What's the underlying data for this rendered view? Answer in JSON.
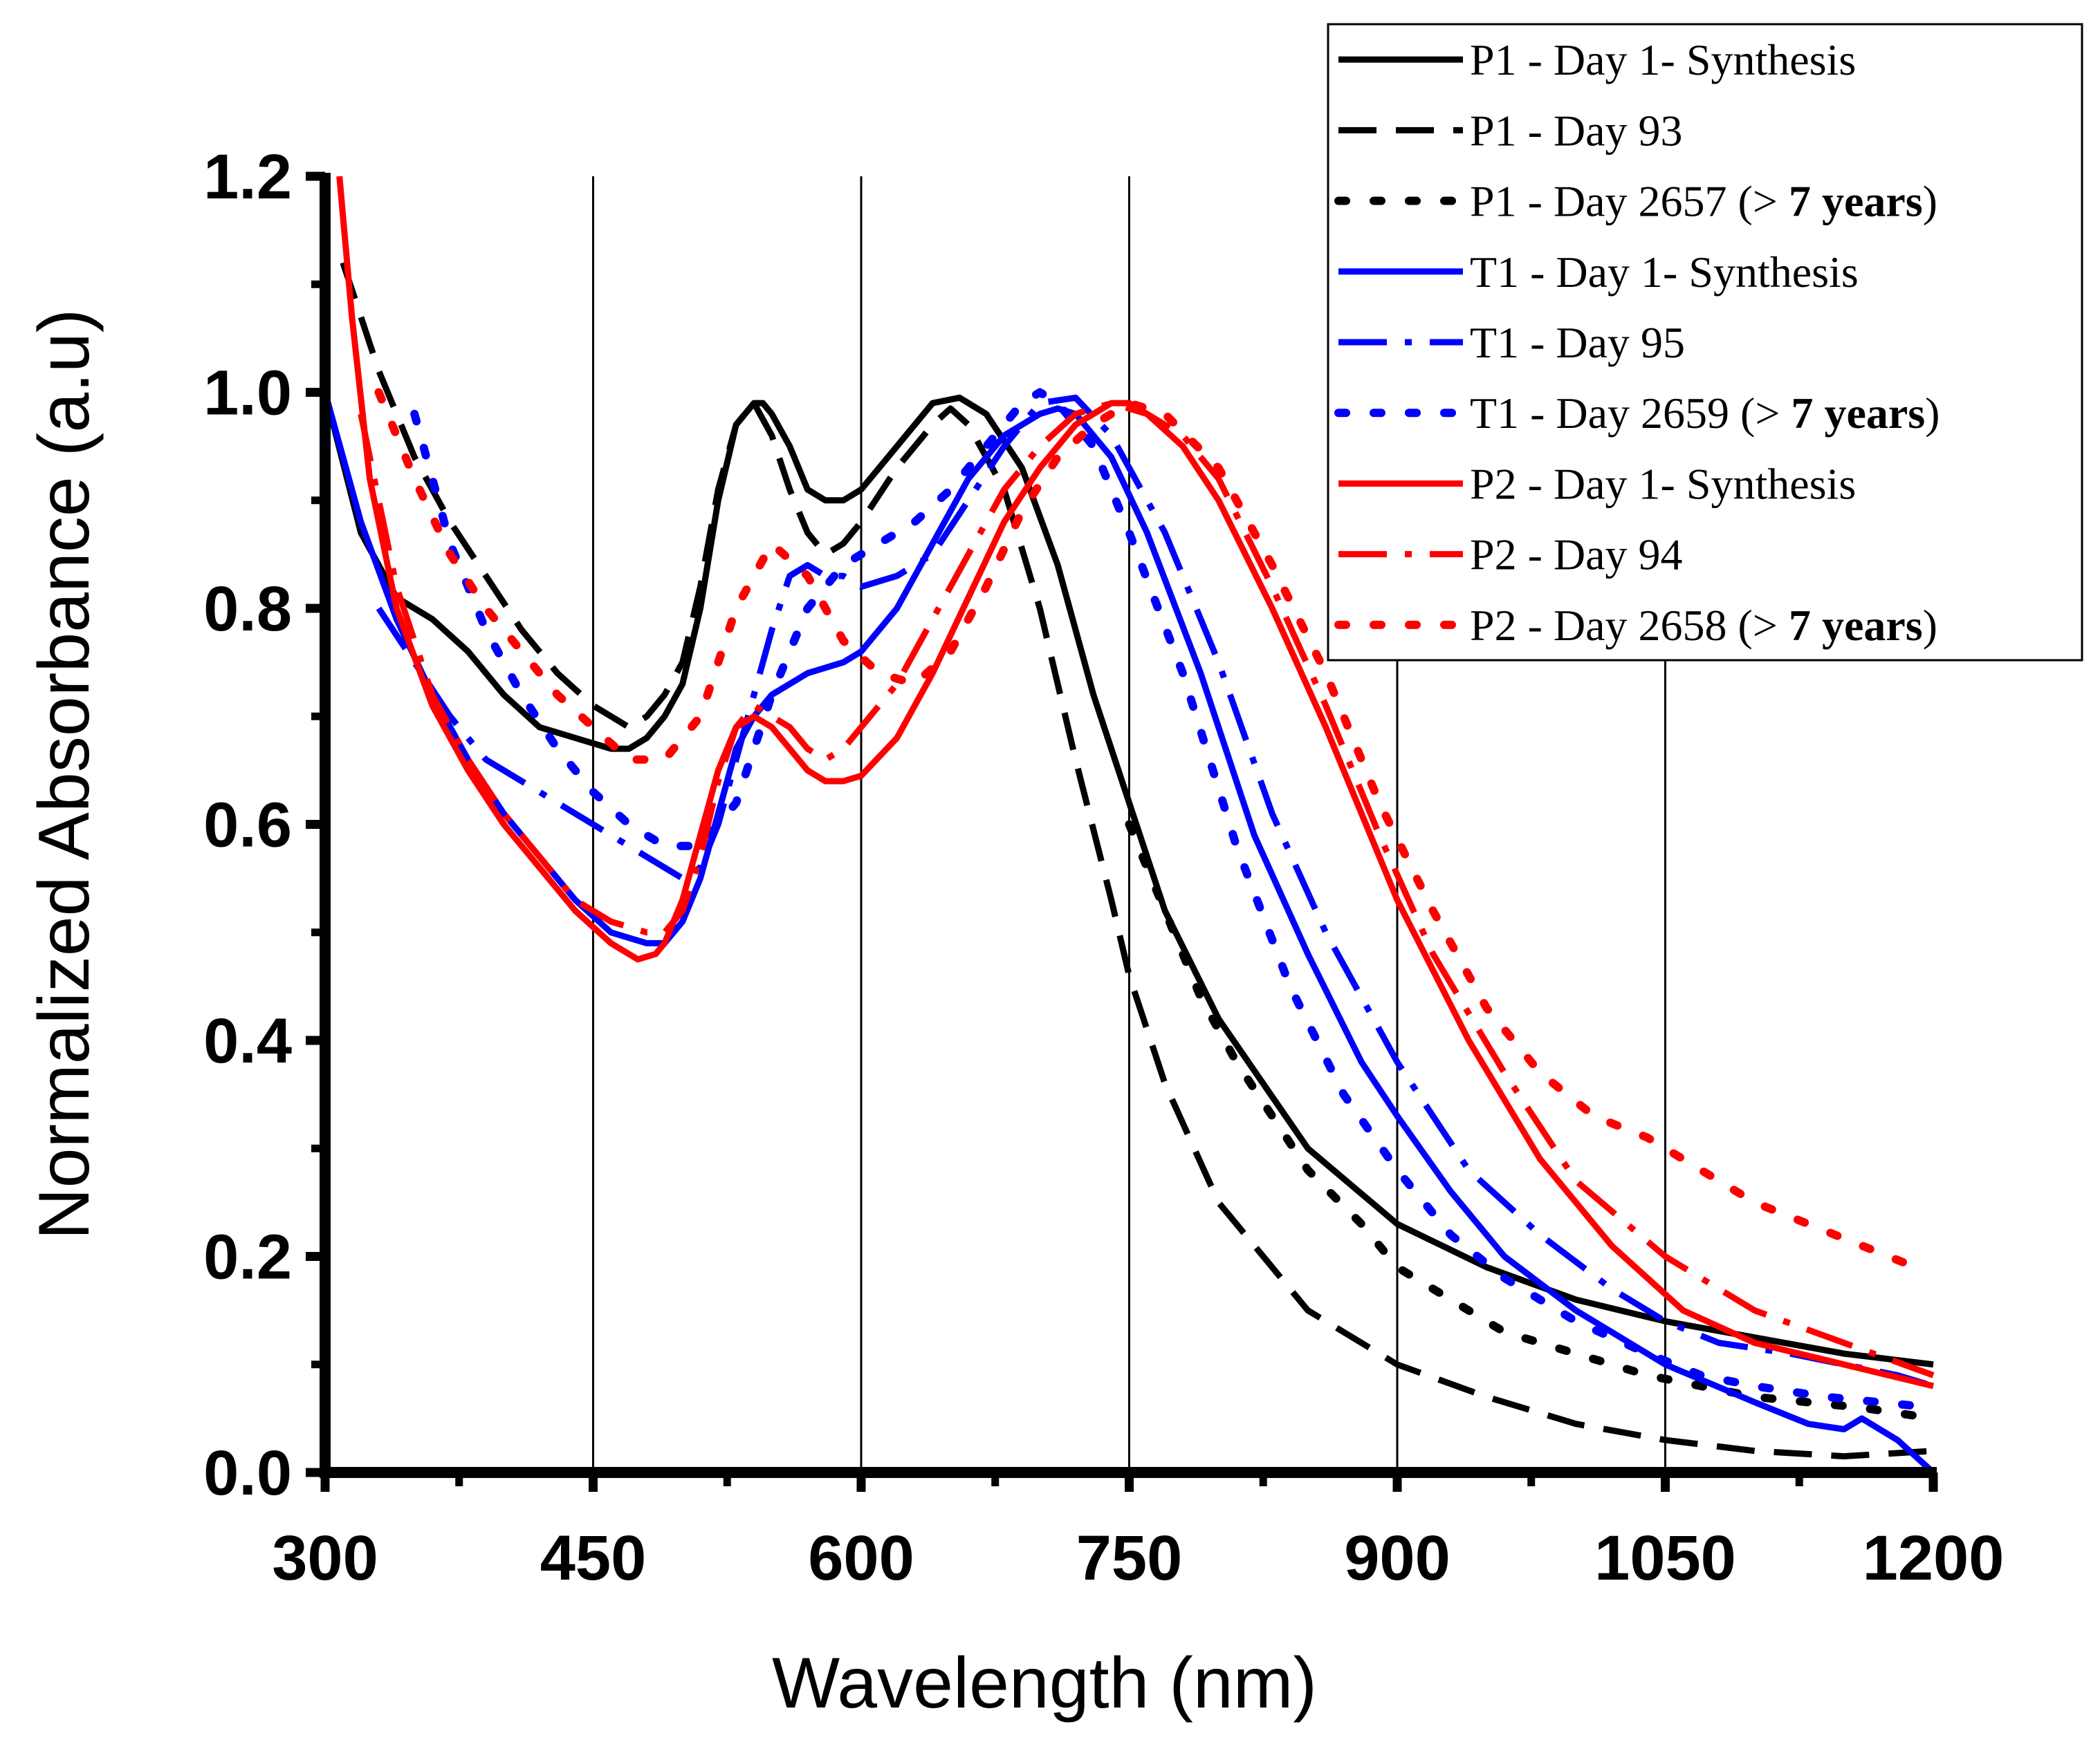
{
  "chart_data": {
    "type": "line",
    "title": "",
    "xlabel": "Wavelength (nm)",
    "ylabel": "Normalized Absorbance (a.u)",
    "xlim": [
      300,
      1200
    ],
    "ylim": [
      0,
      1.2
    ],
    "xticks": [
      300,
      450,
      600,
      750,
      900,
      1050,
      1200
    ],
    "xtick_labels": [
      "300",
      "450",
      "600",
      "750",
      "900",
      "1050",
      "1200"
    ],
    "yticks": [
      0,
      0.2,
      0.4,
      0.6,
      0.8,
      1.0,
      1.2
    ],
    "ytick_labels": [
      "0.0",
      "0.2",
      "0.4",
      "0.6",
      "0.8",
      "1.0",
      "1.2"
    ],
    "vertical_gridlines": [
      450,
      600,
      750,
      900,
      1050
    ],
    "legend_position": "top-right",
    "series": [
      {
        "name": "P1 - Day 1- Synthesis",
        "label_main": "P1 - Day 1- Synthesis",
        "label_bold": "",
        "color": "#000000",
        "style": "solid",
        "x": [
          300,
          320,
          340,
          360,
          380,
          400,
          420,
          440,
          460,
          470,
          480,
          490,
          500,
          510,
          520,
          530,
          540,
          545,
          550,
          560,
          570,
          580,
          590,
          600,
          620,
          640,
          655,
          670,
          690,
          710,
          730,
          750,
          770,
          800,
          850,
          900,
          950,
          1000,
          1050,
          1100,
          1150,
          1200
        ],
        "y": [
          1.0,
          0.87,
          0.81,
          0.79,
          0.76,
          0.72,
          0.69,
          0.68,
          0.67,
          0.67,
          0.68,
          0.7,
          0.73,
          0.8,
          0.9,
          0.97,
          0.99,
          0.99,
          0.98,
          0.95,
          0.91,
          0.9,
          0.9,
          0.91,
          0.95,
          0.99,
          0.995,
          0.98,
          0.93,
          0.84,
          0.72,
          0.62,
          0.52,
          0.42,
          0.3,
          0.23,
          0.19,
          0.16,
          0.14,
          0.125,
          0.11,
          0.1
        ]
      },
      {
        "name": "P1 - Day 93",
        "label_main": "P1 - Day 93",
        "label_bold": "",
        "color": "#000000",
        "style": "long-dash",
        "x": [
          310,
          330,
          350,
          370,
          390,
          410,
          430,
          450,
          470,
          480,
          490,
          500,
          510,
          520,
          530,
          540,
          550,
          560,
          570,
          580,
          590,
          600,
          620,
          640,
          650,
          660,
          680,
          700,
          720,
          740,
          750,
          770,
          800,
          850,
          900,
          950,
          1000,
          1050,
          1100,
          1150,
          1200
        ],
        "y": [
          1.12,
          1.02,
          0.94,
          0.88,
          0.83,
          0.78,
          0.74,
          0.71,
          0.69,
          0.7,
          0.72,
          0.75,
          0.82,
          0.91,
          0.97,
          0.99,
          0.96,
          0.91,
          0.87,
          0.85,
          0.86,
          0.88,
          0.93,
          0.97,
          0.985,
          0.97,
          0.91,
          0.8,
          0.66,
          0.53,
          0.46,
          0.36,
          0.25,
          0.15,
          0.1,
          0.07,
          0.045,
          0.03,
          0.02,
          0.015,
          0.02
        ]
      },
      {
        "name": "P1 - Day 2657  (> 7 years)",
        "label_main": "P1 - Day 2657  (> ",
        "label_bold": "7 years",
        "color": "#000000",
        "style": "dotted",
        "x": [
          750,
          770,
          790,
          810,
          830,
          850,
          880,
          900,
          930,
          960,
          1000,
          1040,
          1070,
          1100,
          1130,
          1160,
          1200
        ],
        "y": [
          0.6,
          0.52,
          0.44,
          0.38,
          0.33,
          0.28,
          0.23,
          0.19,
          0.16,
          0.13,
          0.11,
          0.09,
          0.08,
          0.07,
          0.065,
          0.06,
          0.05
        ]
      },
      {
        "name": "T1 - Day 1- Synthesis",
        "label_main": "T1 - Day 1- Synthesis",
        "label_bold": "",
        "color": "#0000ff",
        "style": "solid",
        "x": [
          300,
          320,
          340,
          360,
          380,
          400,
          420,
          440,
          460,
          480,
          490,
          500,
          510,
          520,
          530,
          540,
          550,
          560,
          570,
          580,
          590,
          600,
          620,
          640,
          660,
          680,
          700,
          710,
          720,
          740,
          760,
          790,
          820,
          850,
          880,
          900,
          930,
          960,
          1000,
          1050,
          1100,
          1130,
          1150,
          1160,
          1180,
          1200
        ],
        "y": [
          1.0,
          0.88,
          0.79,
          0.72,
          0.66,
          0.61,
          0.57,
          0.53,
          0.5,
          0.49,
          0.49,
          0.51,
          0.55,
          0.61,
          0.67,
          0.7,
          0.72,
          0.73,
          0.74,
          0.745,
          0.75,
          0.76,
          0.8,
          0.86,
          0.92,
          0.96,
          0.98,
          0.985,
          0.98,
          0.94,
          0.87,
          0.74,
          0.59,
          0.48,
          0.38,
          0.33,
          0.26,
          0.2,
          0.15,
          0.1,
          0.065,
          0.045,
          0.04,
          0.05,
          0.03,
          0.0
        ]
      },
      {
        "name": "T1 - Day 95",
        "label_main": "T1 - Day 95",
        "label_bold": "",
        "color": "#0000ff",
        "style": "dash-dot",
        "x": [
          330,
          350,
          370,
          390,
          400,
          410,
          430,
          450,
          470,
          490,
          500,
          510,
          520,
          530,
          540,
          550,
          560,
          570,
          580,
          590,
          600,
          620,
          640,
          660,
          680,
          700,
          720,
          740,
          770,
          800,
          830,
          860,
          900,
          940,
          980,
          1020,
          1050,
          1080,
          1120,
          1150,
          1180,
          1200
        ],
        "y": [
          0.8,
          0.75,
          0.7,
          0.66,
          0.65,
          0.64,
          0.62,
          0.6,
          0.58,
          0.56,
          0.55,
          0.56,
          0.6,
          0.66,
          0.72,
          0.78,
          0.83,
          0.84,
          0.83,
          0.83,
          0.82,
          0.83,
          0.85,
          0.9,
          0.95,
          0.99,
          0.995,
          0.96,
          0.87,
          0.75,
          0.61,
          0.5,
          0.38,
          0.28,
          0.22,
          0.17,
          0.14,
          0.12,
          0.11,
          0.1,
          0.09,
          0.08
        ]
      },
      {
        "name": "T1 - Day 2659 (> 7 years)",
        "label_main": "T1 - Day 2659 (> ",
        "label_bold": "7 years",
        "color": "#0000ff",
        "style": "dotted",
        "x": [
          350,
          370,
          390,
          410,
          430,
          450,
          470,
          490,
          510,
          530,
          550,
          570,
          590,
          610,
          630,
          650,
          670,
          690,
          700,
          710,
          730,
          750,
          780,
          810,
          840,
          870,
          900,
          930,
          960,
          1000,
          1040,
          1070,
          1100,
          1140,
          1170,
          1200
        ],
        "y": [
          0.98,
          0.86,
          0.78,
          0.72,
          0.67,
          0.63,
          0.6,
          0.58,
          0.58,
          0.62,
          0.72,
          0.8,
          0.84,
          0.86,
          0.88,
          0.91,
          0.95,
          0.99,
          1.0,
          0.99,
          0.95,
          0.87,
          0.74,
          0.58,
          0.45,
          0.35,
          0.28,
          0.22,
          0.18,
          0.14,
          0.11,
          0.09,
          0.08,
          0.07,
          0.065,
          0.06
        ]
      },
      {
        "name": "P2 - Day 1- Synthesis",
        "label_main": "P2 - Day 1- Synthesis",
        "label_bold": "",
        "color": "#ff0000",
        "style": "solid",
        "x": [
          308,
          315,
          325,
          340,
          360,
          380,
          400,
          420,
          440,
          460,
          475,
          485,
          490,
          500,
          510,
          520,
          530,
          540,
          550,
          560,
          570,
          580,
          590,
          600,
          620,
          640,
          660,
          680,
          700,
          720,
          740,
          750,
          760,
          780,
          800,
          830,
          860,
          900,
          940,
          980,
          1020,
          1060,
          1100,
          1150,
          1200
        ],
        "y": [
          1.2,
          1.07,
          0.92,
          0.8,
          0.71,
          0.65,
          0.6,
          0.56,
          0.52,
          0.49,
          0.475,
          0.48,
          0.49,
          0.53,
          0.59,
          0.65,
          0.69,
          0.7,
          0.69,
          0.67,
          0.65,
          0.64,
          0.64,
          0.645,
          0.68,
          0.74,
          0.81,
          0.88,
          0.93,
          0.97,
          0.99,
          0.99,
          0.98,
          0.95,
          0.9,
          0.8,
          0.69,
          0.53,
          0.4,
          0.29,
          0.21,
          0.15,
          0.12,
          0.1,
          0.08
        ]
      },
      {
        "name": "P2 - Day 94",
        "label_main": "P2 - Day 94",
        "label_bold": "",
        "color": "#ff0000",
        "style": "dash-dot",
        "x": [
          320,
          340,
          360,
          380,
          400,
          420,
          440,
          460,
          480,
          490,
          500,
          510,
          520,
          530,
          540,
          550,
          560,
          570,
          580,
          590,
          600,
          620,
          640,
          660,
          680,
          700,
          720,
          740,
          760,
          780,
          800,
          830,
          860,
          890,
          920,
          960,
          1000,
          1050,
          1100,
          1150,
          1200
        ],
        "y": [
          0.98,
          0.82,
          0.72,
          0.66,
          0.61,
          0.57,
          0.53,
          0.51,
          0.5,
          0.5,
          0.52,
          0.57,
          0.64,
          0.69,
          0.71,
          0.7,
          0.69,
          0.67,
          0.66,
          0.67,
          0.69,
          0.73,
          0.79,
          0.85,
          0.91,
          0.95,
          0.98,
          0.99,
          0.98,
          0.96,
          0.92,
          0.82,
          0.71,
          0.59,
          0.48,
          0.37,
          0.27,
          0.2,
          0.15,
          0.12,
          0.09
        ]
      },
      {
        "name": "P2 - Day 2658 (> 7 years)",
        "label_main": "P2 - Day 2658 (> ",
        "label_bold": "7 years",
        "color": "#ff0000",
        "style": "dotted",
        "x": [
          330,
          350,
          370,
          390,
          410,
          430,
          450,
          470,
          490,
          510,
          530,
          550,
          570,
          590,
          610,
          630,
          650,
          670,
          690,
          710,
          730,
          750,
          770,
          800,
          830,
          860,
          890,
          920,
          950,
          980,
          1010,
          1040,
          1070,
          1100,
          1130,
          1160,
          1190
        ],
        "y": [
          1.0,
          0.92,
          0.85,
          0.8,
          0.76,
          0.72,
          0.69,
          0.66,
          0.66,
          0.7,
          0.8,
          0.86,
          0.83,
          0.77,
          0.74,
          0.73,
          0.76,
          0.82,
          0.89,
          0.94,
          0.97,
          0.99,
          0.98,
          0.93,
          0.84,
          0.74,
          0.62,
          0.52,
          0.43,
          0.37,
          0.33,
          0.31,
          0.28,
          0.25,
          0.23,
          0.21,
          0.19
        ]
      }
    ]
  }
}
